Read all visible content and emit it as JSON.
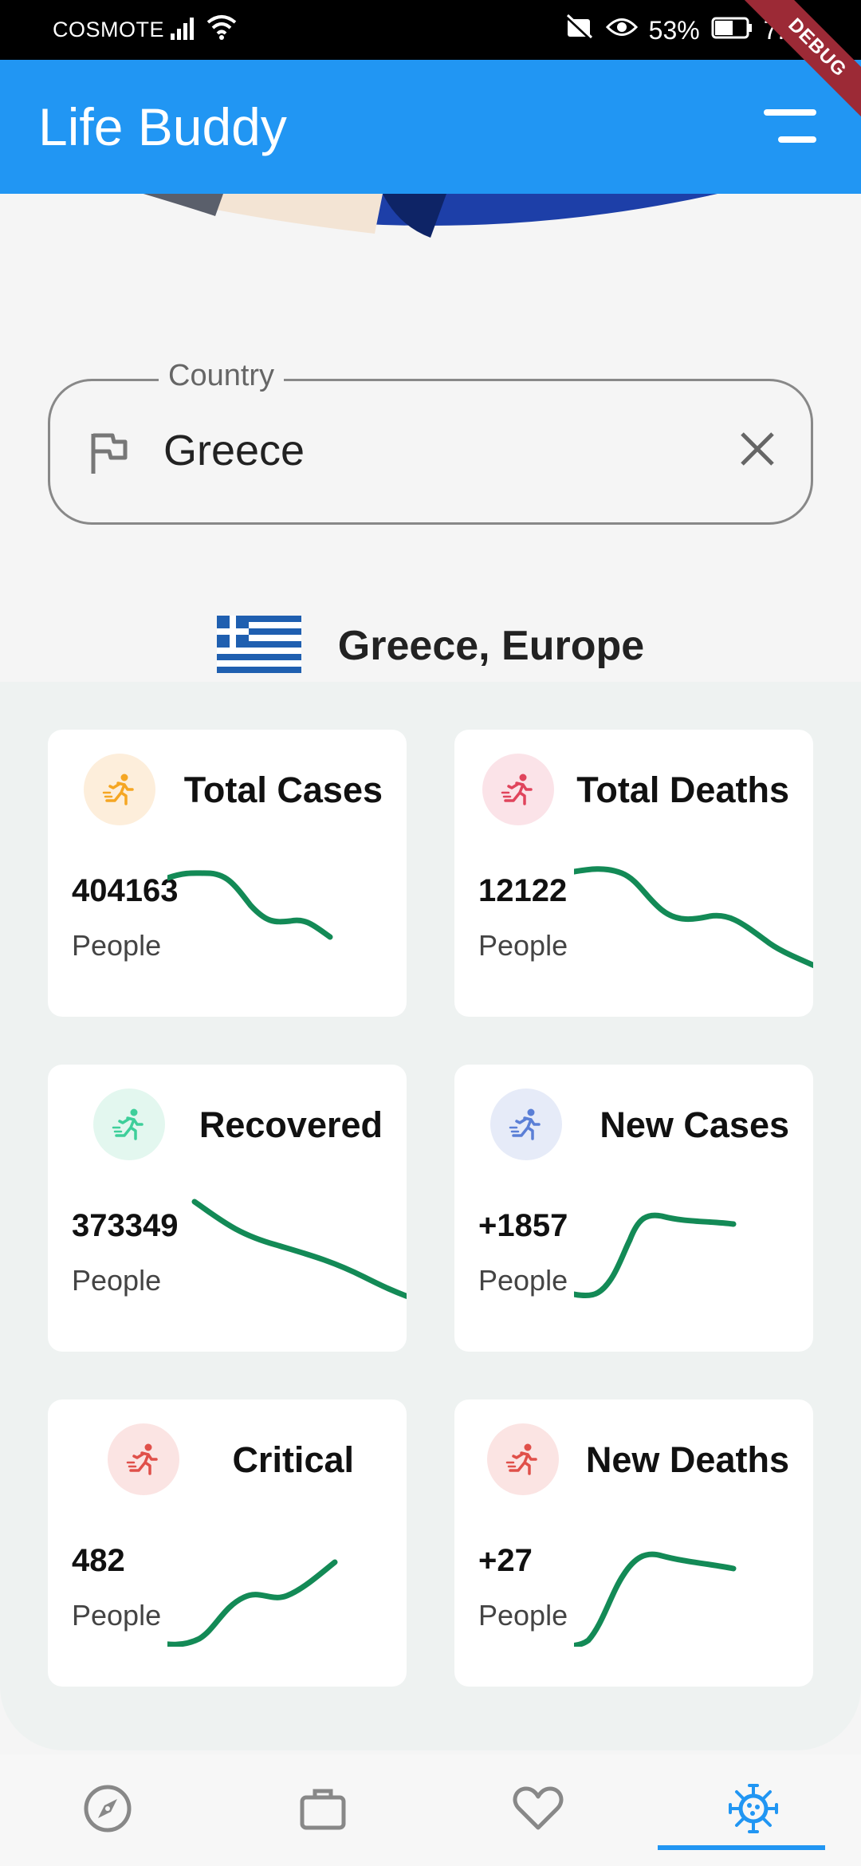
{
  "status_bar": {
    "carrier": "COSMOTE",
    "battery": "53%",
    "time": "7:17",
    "debug_label": "DEBUG"
  },
  "app_bar": {
    "title": "Life Buddy"
  },
  "country_field": {
    "label": "Country",
    "value": "Greece"
  },
  "country_header": {
    "name": "Greece, Europe"
  },
  "colors": {
    "primary": "#2196f3",
    "spark": "#138a56"
  },
  "stats": [
    {
      "title": "Total Cases",
      "value": "404163",
      "unit": "People",
      "icon": "runner-icon",
      "icon_color": "#f5a623",
      "icon_bg": "#fdeedb"
    },
    {
      "title": "Total Deaths",
      "value": "12122",
      "unit": "People",
      "icon": "runner-icon",
      "icon_color": "#e0445c",
      "icon_bg": "#fbe3e8"
    },
    {
      "title": "Recovered",
      "value": "373349",
      "unit": "People",
      "icon": "runner-icon",
      "icon_color": "#3ecf9a",
      "icon_bg": "#e3f7ef"
    },
    {
      "title": "New Cases",
      "value": "+1857",
      "unit": "People",
      "icon": "runner-icon",
      "icon_color": "#5b7fd6",
      "icon_bg": "#e6ebf8"
    },
    {
      "title": "Critical",
      "value": "482",
      "unit": "People",
      "icon": "runner-icon",
      "icon_color": "#e0504a",
      "icon_bg": "#fbe4e3"
    },
    {
      "title": "New Deaths",
      "value": "+27",
      "unit": "People",
      "icon": "runner-icon",
      "icon_color": "#e0504a",
      "icon_bg": "#fbe4e3"
    }
  ],
  "bottom_nav": {
    "items": [
      {
        "name": "compass-icon",
        "active": false
      },
      {
        "name": "briefcase-icon",
        "active": false
      },
      {
        "name": "heart-icon",
        "active": false
      },
      {
        "name": "virus-icon",
        "active": true
      }
    ]
  }
}
